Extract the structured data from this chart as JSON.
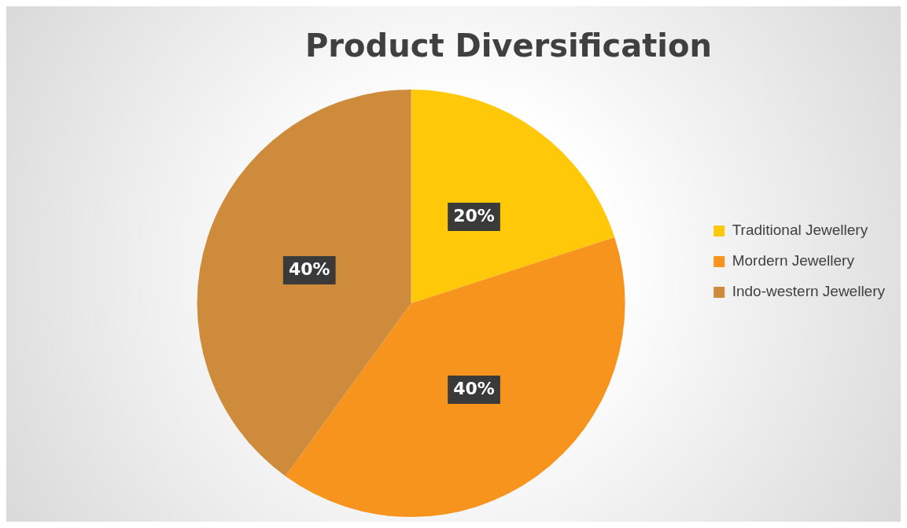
{
  "chart_data": {
    "type": "pie",
    "title": "Product Diversification",
    "categories": [
      "Traditional Jewellery",
      "Mordern Jewellery",
      "Indo-western Jewellery"
    ],
    "values": [
      20,
      40,
      40
    ],
    "colors": [
      "#ffc90a",
      "#f7941d",
      "#cd8b3b"
    ],
    "value_labels": [
      "20%",
      "40%",
      "40%"
    ],
    "legend": "right"
  }
}
